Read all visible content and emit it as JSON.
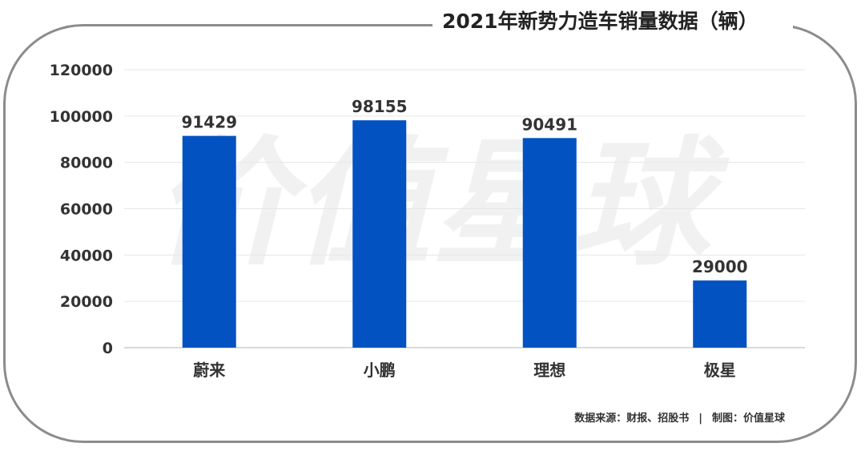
{
  "title": "2021年新势力造车销量数据（辆）",
  "watermark": "价值星球",
  "footer": {
    "source": "数据来源：财报、招股书",
    "separator": "|",
    "made_by": "制图：价值星球"
  },
  "colors": {
    "bar": "#0252c2",
    "grid": "#e6e6e6",
    "axis": "#cfcfcf",
    "text": "#333333"
  },
  "chart_data": {
    "type": "bar",
    "title": "2021年新势力造车销量数据（辆）",
    "categories": [
      "蔚来",
      "小鹏",
      "理想",
      "极星"
    ],
    "values": [
      91429,
      98155,
      90491,
      29000
    ],
    "data_labels": [
      "91429",
      "98155",
      "90491",
      "29000"
    ],
    "xlabel": "",
    "ylabel": "",
    "ylim": [
      0,
      120000
    ],
    "yticks": [
      0,
      20000,
      40000,
      60000,
      80000,
      100000,
      120000
    ],
    "ytick_labels": [
      "0",
      "20000",
      "40000",
      "60000",
      "80000",
      "100000",
      "120000"
    ],
    "grid": true,
    "legend": "none"
  }
}
